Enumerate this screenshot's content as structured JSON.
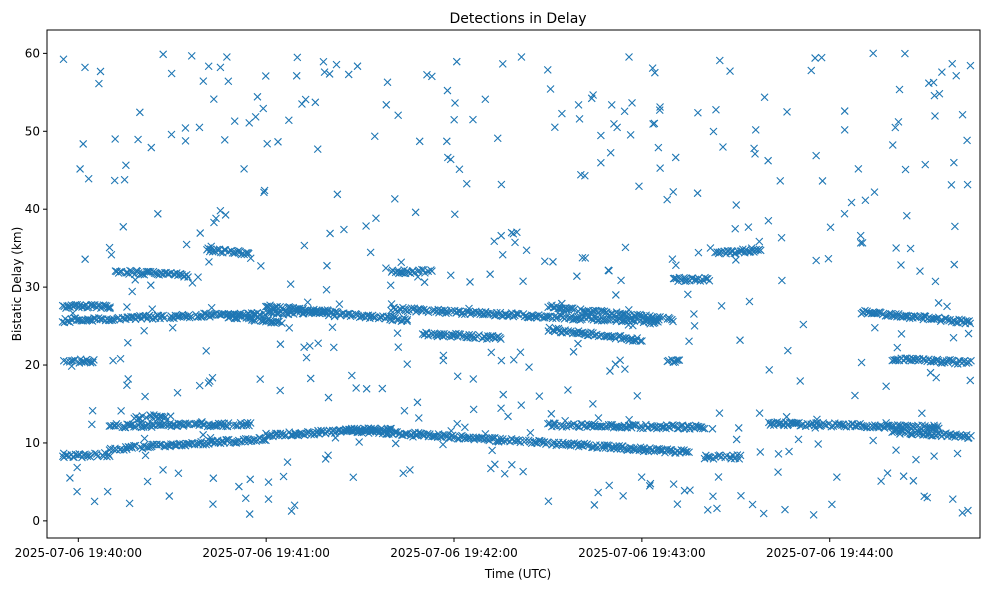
{
  "chart_data": {
    "type": "scatter",
    "title": "Detections in Delay",
    "xlabel": "Time (UTC)",
    "ylabel": "Bistatic Delay (km)",
    "marker": "x",
    "color": "#1f77b4",
    "x_ticks": [
      "2025-07-06 19:40:00",
      "2025-07-06 19:41:00",
      "2025-07-06 19:42:00",
      "2025-07-06 19:43:00",
      "2025-07-06 19:44:00"
    ],
    "y_ticks": [
      0,
      10,
      20,
      30,
      40,
      50,
      60
    ],
    "xlim": [
      "2025-07-06 19:39:50",
      "2025-07-06 19:44:48"
    ],
    "ylim": [
      -2.2,
      63
    ],
    "grid": false,
    "time_range": [
      "2025-07-06 19:39:55",
      "2025-07-06 19:44:45"
    ],
    "series": [
      {
        "points_description": "tracks",
        "tracks": [
          {
            "t": [
              "19:39:55",
              "19:40:10"
            ],
            "y": [
              27.5,
              27.5
            ]
          },
          {
            "t": [
              "19:39:55",
              "19:40:48"
            ],
            "y": [
              25.7,
              26.5
            ]
          },
          {
            "t": [
              "19:40:48",
              "19:41:20"
            ],
            "y": [
              26.3,
              27.0
            ]
          },
          {
            "t": [
              "19:40:48",
              "19:41:05"
            ],
            "y": [
              26.3,
              25.5
            ]
          },
          {
            "t": [
              "19:41:00",
              "19:41:45"
            ],
            "y": [
              27.5,
              25.8
            ]
          },
          {
            "t": [
              "19:41:40",
              "19:43:05"
            ],
            "y": [
              27.2,
              25.5
            ]
          },
          {
            "t": [
              "19:42:30",
              "19:43:10"
            ],
            "y": [
              27.5,
              25.8
            ]
          },
          {
            "t": [
              "19:41:50",
              "19:42:15"
            ],
            "y": [
              24.0,
              23.5
            ]
          },
          {
            "t": [
              "19:42:30",
              "19:43:00"
            ],
            "y": [
              24.6,
              23.2
            ]
          },
          {
            "t": [
              "19:44:10",
              "19:44:45"
            ],
            "y": [
              26.8,
              25.5
            ]
          },
          {
            "t": [
              "19:39:55",
              "19:40:05"
            ],
            "y": [
              20.5,
              20.5
            ]
          },
          {
            "t": [
              "19:40:12",
              "19:40:35"
            ],
            "y": [
              32.0,
              31.5
            ]
          },
          {
            "t": [
              "19:40:40",
              "19:40:55"
            ],
            "y": [
              34.8,
              34.3
            ]
          },
          {
            "t": [
              "19:41:40",
              "19:41:53"
            ],
            "y": [
              32.0,
              32.0
            ]
          },
          {
            "t": [
              "19:43:10",
              "19:43:22"
            ],
            "y": [
              31.0,
              31.0
            ]
          },
          {
            "t": [
              "19:43:23",
              "19:43:38"
            ],
            "y": [
              34.3,
              34.8
            ]
          },
          {
            "t": [
              "19:43:08",
              "19:43:12"
            ],
            "y": [
              20.5,
              20.5
            ]
          },
          {
            "t": [
              "19:44:20",
              "19:44:45"
            ],
            "y": [
              20.8,
              20.3
            ]
          },
          {
            "t": [
              "19:39:55",
              "19:40:10"
            ],
            "y": [
              8.3,
              8.5
            ]
          },
          {
            "t": [
              "19:40:10",
              "19:40:55"
            ],
            "y": [
              12.2,
              12.4
            ]
          },
          {
            "t": [
              "19:40:10",
              "19:41:00"
            ],
            "y": [
              9.2,
              10.5
            ]
          },
          {
            "t": [
              "19:41:00",
              "19:41:40"
            ],
            "y": [
              11.0,
              11.8
            ]
          },
          {
            "t": [
              "19:41:25",
              "19:43:15"
            ],
            "y": [
              11.7,
              8.8
            ]
          },
          {
            "t": [
              "19:42:30",
              "19:43:20"
            ],
            "y": [
              12.3,
              12.0
            ]
          },
          {
            "t": [
              "19:43:20",
              "19:43:32"
            ],
            "y": [
              8.2,
              8.2
            ]
          },
          {
            "t": [
              "19:43:40",
              "19:44:35"
            ],
            "y": [
              12.5,
              12.0
            ]
          },
          {
            "t": [
              "19:44:20",
              "19:44:45"
            ],
            "y": [
              11.5,
              10.8
            ]
          },
          {
            "t": [
              "19:40:18",
              "19:40:28"
            ],
            "y": [
              13.2,
              13.5
            ]
          }
        ],
        "noise": {
          "count": 470,
          "y_range": [
            0.5,
            60
          ]
        }
      }
    ]
  }
}
